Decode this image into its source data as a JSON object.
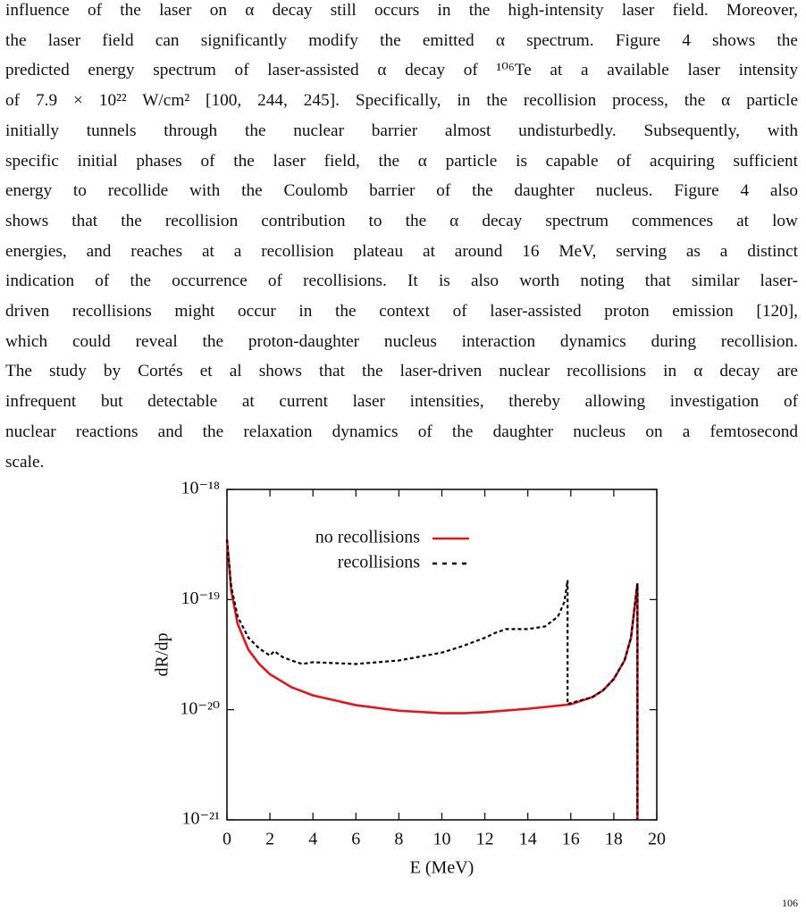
{
  "body": {
    "lines": [
      "influence of the laser on α decay still occurs in the high-intensity laser field. Moreover,",
      "the laser field can significantly modify the emitted α spectrum. Figure 4 shows the",
      "predicted energy spectrum of laser-assisted α decay of ¹⁰⁶Te at a available laser intensity",
      "of 7.9 × 10²² W/cm² [100, 244, 245]. Specifically, in the recollision process, the α particle",
      "initially tunnels through the nuclear barrier almost undisturbedly. Subsequently, with",
      "specific initial phases of the laser field, the α particle is capable of acquiring sufficient",
      "energy to recollide with the Coulomb barrier of the daughter nucleus. Figure 4 also",
      "shows that the recollision contribution to the α decay spectrum commences at low",
      "energies, and reaches at a recollision plateau at around 16 MeV, serving as a distinct",
      "indication of the occurrence of recollisions. It is also worth noting that similar laser-",
      "driven recollisions might occur in the context of laser-assisted proton emission [120],",
      "which could reveal the proton-daughter nucleus interaction dynamics during recollision.",
      "The study by Cortés et al shows that the laser-driven nuclear recollisions in α decay are",
      "infrequent but detectable at current laser intensities, thereby allowing investigation of",
      "nuclear reactions and the relaxation dynamics of the daughter nucleus on a femtosecond",
      "scale."
    ]
  },
  "chart_data": {
    "type": "line",
    "x_label": "E (MeV)",
    "y_label": "dR/dp",
    "xlim": [
      0,
      20
    ],
    "xticks": [
      0,
      2,
      4,
      6,
      8,
      10,
      12,
      14,
      16,
      18,
      20
    ],
    "ylim": [
      1e-21,
      1e-18
    ],
    "y_scale": "log",
    "yticks": [
      {
        "value": 1e-21,
        "label": "10⁻²¹"
      },
      {
        "value": 1e-20,
        "label": "10⁻²⁰"
      },
      {
        "value": 1e-19,
        "label": "10⁻¹⁹"
      },
      {
        "value": 1e-18,
        "label": "10⁻¹⁸"
      }
    ],
    "legend": "top",
    "series": [
      {
        "name": "no recollisions",
        "color": "#e8141c",
        "line_style": "solid",
        "x": [
          0,
          0.2,
          0.5,
          1,
          1.5,
          2,
          3,
          4,
          6,
          8,
          10,
          11,
          12,
          14,
          16,
          17,
          17.5,
          18,
          18.5,
          18.8,
          19.1,
          19.1
        ],
        "values": [
          3.5e-19,
          1.2e-19,
          6e-20,
          3.5e-20,
          2.6e-20,
          2.1e-20,
          1.6e-20,
          1.35e-20,
          1.1e-20,
          9.8e-21,
          9.3e-21,
          9.3e-21,
          9.5e-21,
          1.02e-20,
          1.12e-20,
          1.3e-20,
          1.5e-20,
          1.9e-20,
          2.8e-20,
          4.5e-20,
          1.4e-19,
          1e-21
        ]
      },
      {
        "name": "recollisions",
        "color": "#000000",
        "line_style": "dashed",
        "x": [
          0,
          0.2,
          0.5,
          1,
          1.5,
          2,
          2.2,
          2.6,
          3,
          3.5,
          4,
          6,
          8,
          10,
          11,
          12,
          12.5,
          13,
          14,
          14.8,
          15.4,
          15.7,
          15.85,
          15.85,
          16,
          17,
          17.5,
          18,
          18.5,
          18.8,
          19.1,
          19.1
        ],
        "values": [
          3.5e-19,
          1.3e-19,
          7e-20,
          4.5e-20,
          3.6e-20,
          3.1e-20,
          3.4e-20,
          3e-20,
          2.8e-20,
          2.6e-20,
          2.7e-20,
          2.6e-20,
          2.8e-20,
          3.3e-20,
          3.8e-20,
          4.5e-20,
          5e-20,
          5.4e-20,
          5.4e-20,
          5.7e-20,
          7e-20,
          9.5e-20,
          1.5e-19,
          1.12e-20,
          1.15e-20,
          1.3e-20,
          1.5e-20,
          1.9e-20,
          2.8e-20,
          4.5e-20,
          1.4e-19,
          1e-21
        ]
      }
    ]
  },
  "caption_fragment": "106"
}
